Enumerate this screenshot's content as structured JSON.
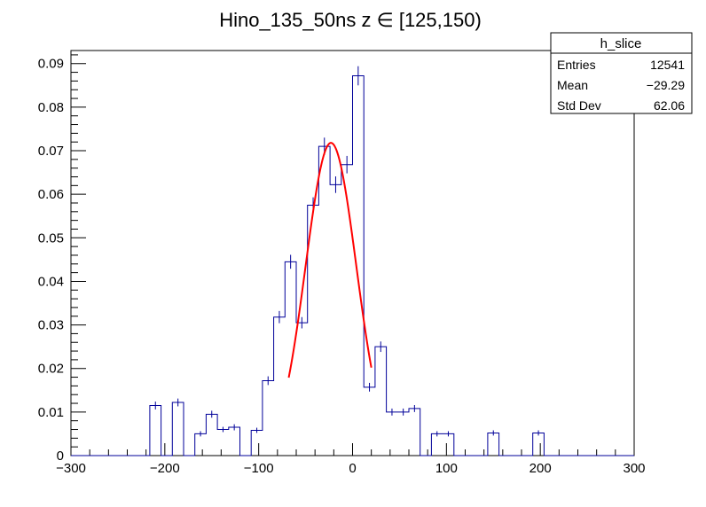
{
  "chart_data": {
    "type": "histogram",
    "title": "Hino_135_50ns z  ∈ [125,150)",
    "xlabel": "",
    "ylabel": "",
    "xlim": [
      -300,
      300
    ],
    "ylim": [
      0,
      0.093
    ],
    "x_ticks": [
      -300,
      -200,
      -100,
      0,
      100,
      200,
      300
    ],
    "y_ticks": [
      0,
      0.01,
      0.02,
      0.03,
      0.04,
      0.05,
      0.06,
      0.07,
      0.08,
      0.09
    ],
    "bin_width": 12,
    "bins_low_edges": [
      -300,
      -288,
      -276,
      -264,
      -252,
      -240,
      -228,
      -216,
      -204,
      -192,
      -180,
      -168,
      -156,
      -144,
      -132,
      -120,
      -108,
      -96,
      -84,
      -72,
      -60,
      -48,
      -36,
      -24,
      -12,
      0,
      12,
      24,
      36,
      48,
      60,
      72,
      84,
      96,
      108,
      120,
      132,
      144,
      156,
      168,
      180,
      192,
      204,
      216,
      228,
      240,
      252,
      264,
      276,
      288
    ],
    "values": [
      0,
      0,
      0,
      0,
      0,
      0,
      0,
      0.0115,
      0,
      0.0122,
      0,
      0.005,
      0.0095,
      0.006,
      0.0065,
      0,
      0.0058,
      0.0172,
      0.0318,
      0.0445,
      0.0305,
      0.0575,
      0.071,
      0.0622,
      0.0668,
      0.0872,
      0.0157,
      0.025,
      0.01,
      0.01,
      0.0108,
      0,
      0.005,
      0.005,
      0,
      0,
      0,
      0.0052,
      0,
      0,
      0,
      0.0052,
      0,
      0,
      0,
      0,
      0,
      0,
      0,
      0
    ],
    "errors": [
      0,
      0,
      0,
      0,
      0,
      0,
      0,
      0.0009,
      0,
      0.0009,
      0,
      0.0006,
      0.0008,
      0.0006,
      0.0007,
      0,
      0.0006,
      0.001,
      0.0014,
      0.0016,
      0.0013,
      0.0018,
      0.002,
      0.0019,
      0.002,
      0.0022,
      0.001,
      0.0012,
      0.0008,
      0.0008,
      0.0008,
      0,
      0.0006,
      0.0006,
      0,
      0,
      0,
      0.0006,
      0,
      0,
      0,
      0.0006,
      0,
      0,
      0,
      0,
      0,
      0,
      0,
      0
    ],
    "fit": {
      "type": "gaussian",
      "amplitude": 0.0718,
      "mean": -23,
      "sigma": 27,
      "x_range": [
        -68,
        20
      ]
    },
    "stats_box": {
      "title": "h_slice",
      "rows": [
        {
          "label": "Entries",
          "value": "12541"
        },
        {
          "label": "Mean",
          "value": "−29.29"
        },
        {
          "label": "Std Dev",
          "value": "62.06"
        }
      ]
    },
    "colors": {
      "histogram": "#000099",
      "fit": "#ff0000",
      "axes": "#000000"
    }
  }
}
